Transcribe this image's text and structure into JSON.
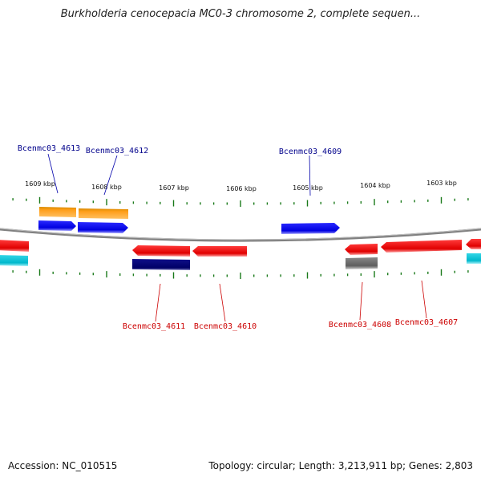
{
  "title": "Burkholderia cenocepacia MC0-3 chromosome 2, complete sequen...",
  "footer": {
    "accession": "Accession: NC_010515",
    "summary": "Topology: circular; Length: 3,213,911 bp; Genes: 2,803"
  },
  "colors": {
    "label_top": "#00008b",
    "label_bottom": "#cc0000",
    "tick": "#1a7a1a",
    "backbone": "#808080"
  },
  "ticks": [
    {
      "label": "1609 kbp",
      "pos": 1609
    },
    {
      "label": "1608 kbp",
      "pos": 1608
    },
    {
      "label": "1607 kbp",
      "pos": 1607
    },
    {
      "label": "1606 kbp",
      "pos": 1606
    },
    {
      "label": "1605 kbp",
      "pos": 1605
    },
    {
      "label": "1604 kbp",
      "pos": 1604
    },
    {
      "label": "1603 kbp",
      "pos": 1603
    }
  ],
  "gene_labels_top": [
    {
      "name": "Bcenmc03_4613"
    },
    {
      "name": "Bcenmc03_4612"
    },
    {
      "name": "Bcenmc03_4609"
    }
  ],
  "gene_labels_bottom": [
    {
      "name": "Bcenmc03_4611"
    },
    {
      "name": "Bcenmc03_4610"
    },
    {
      "name": "Bcenmc03_4608"
    },
    {
      "name": "Bcenmc03_4607"
    }
  ]
}
